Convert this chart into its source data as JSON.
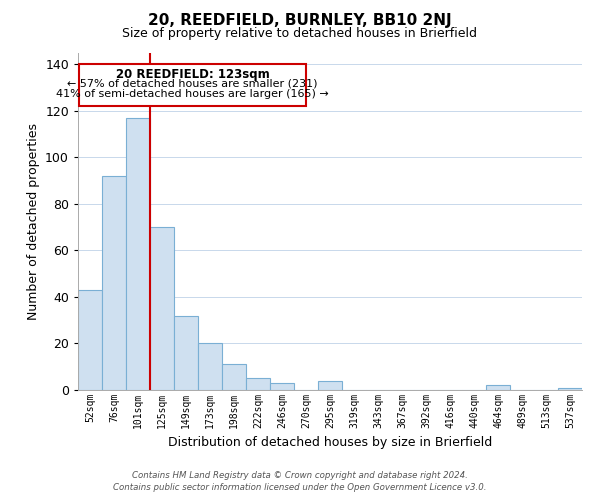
{
  "title": "20, REEDFIELD, BURNLEY, BB10 2NJ",
  "subtitle": "Size of property relative to detached houses in Brierfield",
  "xlabel": "Distribution of detached houses by size in Brierfield",
  "ylabel": "Number of detached properties",
  "bar_labels": [
    "52sqm",
    "76sqm",
    "101sqm",
    "125sqm",
    "149sqm",
    "173sqm",
    "198sqm",
    "222sqm",
    "246sqm",
    "270sqm",
    "295sqm",
    "319sqm",
    "343sqm",
    "367sqm",
    "392sqm",
    "416sqm",
    "440sqm",
    "464sqm",
    "489sqm",
    "513sqm",
    "537sqm"
  ],
  "bar_values": [
    43,
    92,
    117,
    70,
    32,
    20,
    11,
    5,
    3,
    0,
    4,
    0,
    0,
    0,
    0,
    0,
    0,
    2,
    0,
    0,
    1
  ],
  "bar_color": "#cfe0f0",
  "bar_edge_color": "#7aafd4",
  "vline_color": "#cc0000",
  "vline_idx": 2.5,
  "ylim": [
    0,
    145
  ],
  "yticks": [
    0,
    20,
    40,
    60,
    80,
    100,
    120,
    140
  ],
  "annotation_title": "20 REEDFIELD: 123sqm",
  "annotation_line1": "← 57% of detached houses are smaller (231)",
  "annotation_line2": "41% of semi-detached houses are larger (165) →",
  "annotation_box_facecolor": "#ffffff",
  "annotation_box_edgecolor": "#cc0000",
  "footer_line1": "Contains HM Land Registry data © Crown copyright and database right 2024.",
  "footer_line2": "Contains public sector information licensed under the Open Government Licence v3.0.",
  "background_color": "#ffffff",
  "grid_color": "#c8d8eb"
}
